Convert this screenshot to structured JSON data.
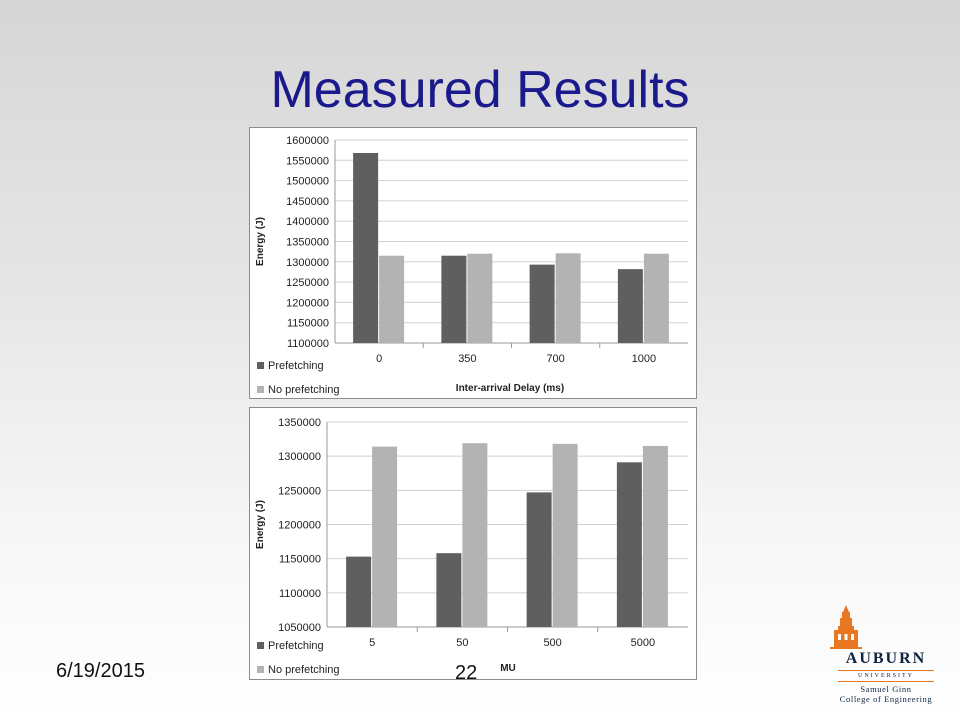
{
  "slide": {
    "title": "Measured Results",
    "date": "6/19/2015",
    "page_number": "22"
  },
  "logo": {
    "name": "AUBURN",
    "subtitle": "UNIVERSITY",
    "college_line1": "Samuel Ginn",
    "college_line2": "College of Engineering",
    "colors": {
      "navy": "#0c2340",
      "orange": "#e87722"
    }
  },
  "colors": {
    "title": "#1a1a8c",
    "prefetching": "#5f5f5f",
    "no_prefetching": "#b3b3b3",
    "grid": "#d0d0d0"
  },
  "chart_data": [
    {
      "type": "bar",
      "xlabel": "Inter-arrival Delay (ms)",
      "ylabel": "Energy (J)",
      "ylim": [
        1100000,
        1600000
      ],
      "ytick_step": 50000,
      "categories": [
        "0",
        "350",
        "700",
        "1000"
      ],
      "series": [
        {
          "name": "Prefetching",
          "values": [
            1568000,
            1315000,
            1293000,
            1282000
          ]
        },
        {
          "name": "No prefetching",
          "values": [
            1315000,
            1320000,
            1321000,
            1320000
          ]
        }
      ],
      "legend": "bottom-left",
      "grid": true
    },
    {
      "type": "bar",
      "xlabel": "MU",
      "ylabel": "Energy (J)",
      "ylim": [
        1050000,
        1350000
      ],
      "ytick_step": 50000,
      "categories": [
        "5",
        "50",
        "500",
        "5000"
      ],
      "series": [
        {
          "name": "Prefetching",
          "values": [
            1153000,
            1158000,
            1247000,
            1291000
          ]
        },
        {
          "name": "No prefetching",
          "values": [
            1314000,
            1319000,
            1318000,
            1315000
          ]
        }
      ],
      "legend": "bottom-left",
      "grid": true
    }
  ]
}
